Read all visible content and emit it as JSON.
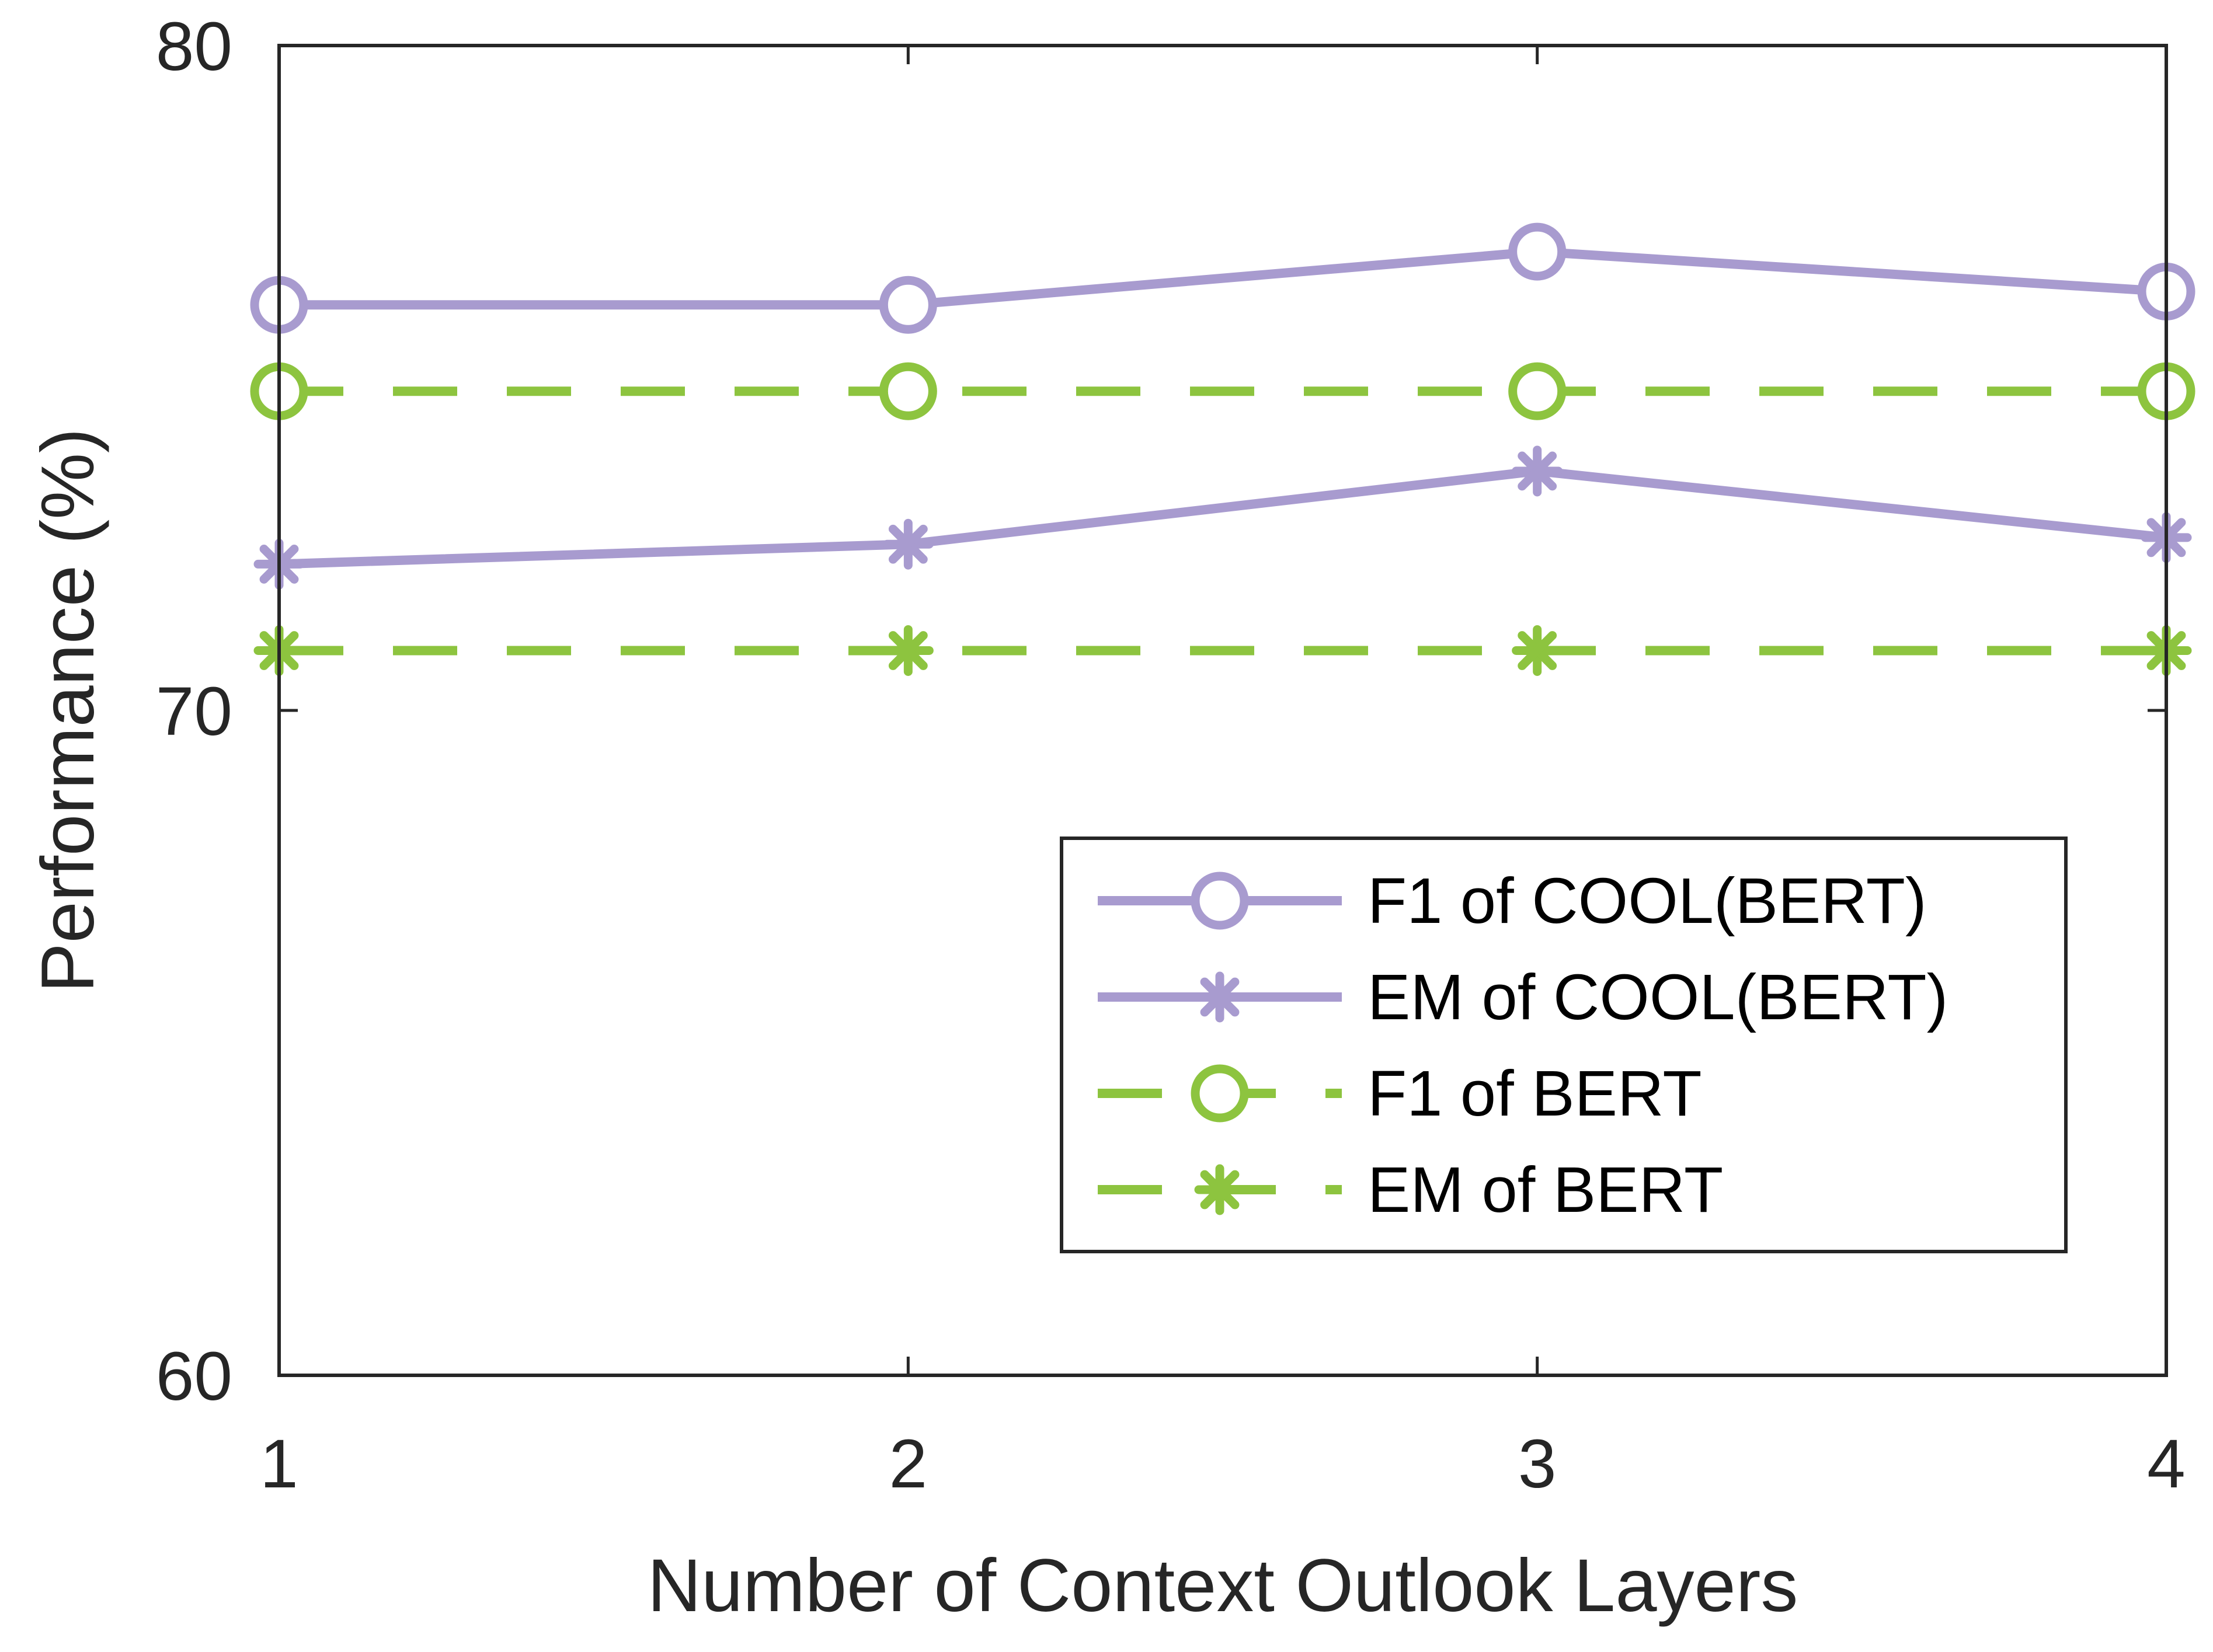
{
  "chart_data": {
    "type": "line",
    "title": "",
    "xlabel": "Number of Context Outlook Layers",
    "ylabel": "Performance (%)",
    "x": [
      1,
      2,
      3,
      4
    ],
    "xticks": [
      "1",
      "2",
      "3",
      "4"
    ],
    "yticks": [
      "60",
      "70",
      "80"
    ],
    "xlim": [
      1,
      4
    ],
    "ylim": [
      60,
      80
    ],
    "grid": false,
    "legend_position": "bottom-right",
    "series": [
      {
        "name": "F1 of COOL(BERT)",
        "values": [
          76.1,
          76.1,
          76.9,
          76.3
        ],
        "color": "#a89bcf",
        "marker": "circle",
        "line": "solid"
      },
      {
        "name": "EM of COOL(BERT)",
        "values": [
          72.2,
          72.5,
          73.6,
          72.6
        ],
        "color": "#a89bcf",
        "marker": "asterisk",
        "line": "solid"
      },
      {
        "name": "F1 of BERT",
        "values": [
          74.8,
          74.8,
          74.8,
          74.8
        ],
        "color": "#8dc43f",
        "marker": "circle",
        "line": "dashed"
      },
      {
        "name": "EM of BERT",
        "values": [
          70.9,
          70.9,
          70.9,
          70.9
        ],
        "color": "#8dc43f",
        "marker": "asterisk",
        "line": "dashed"
      }
    ]
  }
}
